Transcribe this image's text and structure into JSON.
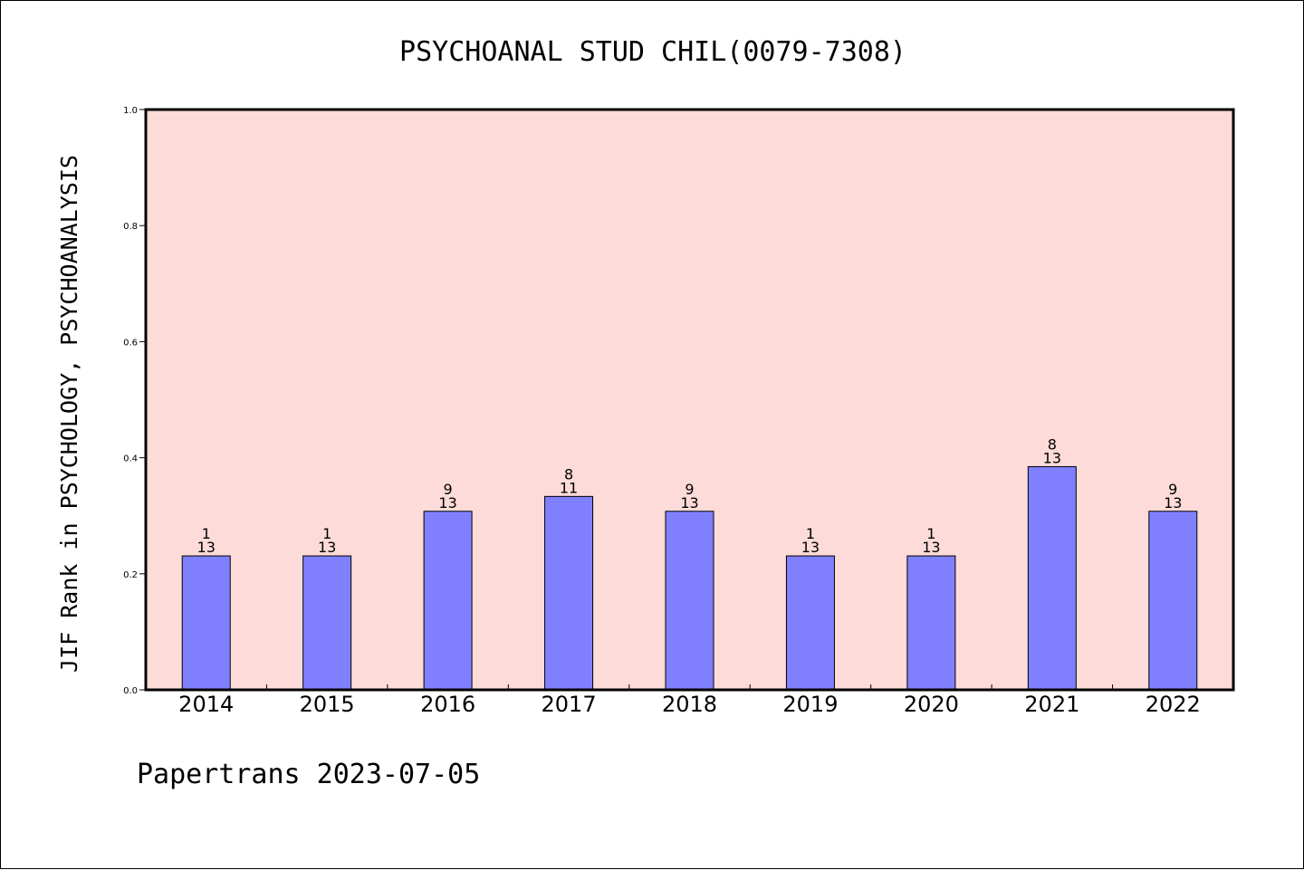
{
  "chart_data": {
    "type": "bar",
    "title": "PSYCHOANAL STUD CHIL(0079-7308)",
    "ylabel": "JIF Rank in PSYCHOLOGY, PSYCHOANALYSIS",
    "xlabel": "",
    "categories": [
      "2014",
      "2015",
      "2016",
      "2017",
      "2018",
      "2019",
      "2020",
      "2021",
      "2022"
    ],
    "values": [
      0.2308,
      0.2308,
      0.3077,
      0.3333,
      0.3077,
      0.2308,
      0.2308,
      0.3846,
      0.3077
    ],
    "labels_top": [
      "1",
      "1",
      "9",
      "8",
      "9",
      "1",
      "1",
      "8",
      "9"
    ],
    "labels_bottom": [
      "13",
      "13",
      "13",
      "11",
      "13",
      "13",
      "13",
      "13",
      "13"
    ],
    "ylim": [
      0,
      1.0
    ],
    "yticks": [
      "0.0",
      "0.2",
      "0.4",
      "0.6",
      "0.8",
      "1.0"
    ],
    "grid": false,
    "colors": {
      "plot_background": "#fddbd8",
      "bar_fill": "#8080ff",
      "bar_edge": "#000000"
    }
  },
  "footer": "Papertrans 2023-07-05"
}
